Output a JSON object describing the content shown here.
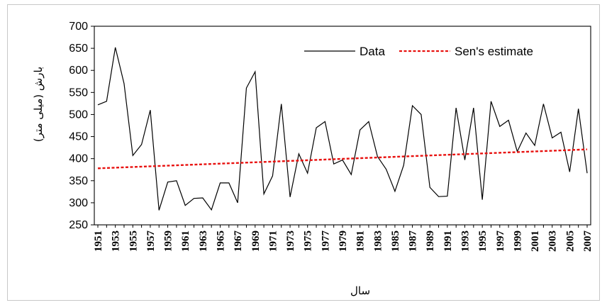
{
  "chart_data": {
    "type": "line",
    "xlabel": "سال",
    "ylabel": "بارش (میلی متر)",
    "ylim": [
      250,
      700
    ],
    "yticks": [
      250,
      300,
      350,
      400,
      450,
      500,
      550,
      600,
      650,
      700
    ],
    "xlim": [
      1951,
      2007
    ],
    "xticks": [
      1951,
      1953,
      1955,
      1957,
      1959,
      1961,
      1963,
      1965,
      1967,
      1969,
      1971,
      1973,
      1975,
      1977,
      1979,
      1981,
      1983,
      1985,
      1987,
      1989,
      1991,
      1993,
      1995,
      1997,
      1999,
      2001,
      2003,
      2005,
      2007
    ],
    "grid": false,
    "legend_position": "top-right",
    "series": [
      {
        "name": "Data",
        "color": "#000000",
        "style": "solid",
        "x": [
          1951,
          1952,
          1953,
          1954,
          1955,
          1956,
          1957,
          1958,
          1959,
          1960,
          1961,
          1962,
          1963,
          1964,
          1965,
          1966,
          1967,
          1968,
          1969,
          1970,
          1971,
          1972,
          1973,
          1974,
          1975,
          1976,
          1977,
          1978,
          1979,
          1980,
          1981,
          1982,
          1983,
          1984,
          1985,
          1986,
          1987,
          1988,
          1989,
          1990,
          1991,
          1992,
          1993,
          1994,
          1995,
          1996,
          1997,
          1998,
          1999,
          2000,
          2001,
          2002,
          2003,
          2004,
          2005,
          2006,
          2007
        ],
        "values": [
          522,
          530,
          652,
          570,
          407,
          432,
          510,
          283,
          347,
          350,
          294,
          310,
          311,
          284,
          345,
          345,
          300,
          560,
          597,
          320,
          361,
          524,
          313,
          411,
          367,
          470,
          484,
          388,
          397,
          364,
          465,
          484,
          405,
          376,
          326,
          385,
          520,
          500,
          335,
          314,
          315,
          515,
          397,
          515,
          307,
          530,
          473,
          487,
          416,
          458,
          430,
          524,
          447,
          460,
          370,
          513,
          367
        ]
      },
      {
        "name": "Sen's estimate",
        "color": "#e8110f",
        "style": "dashed",
        "x": [
          1951,
          2007
        ],
        "values": [
          378,
          421
        ]
      }
    ]
  }
}
